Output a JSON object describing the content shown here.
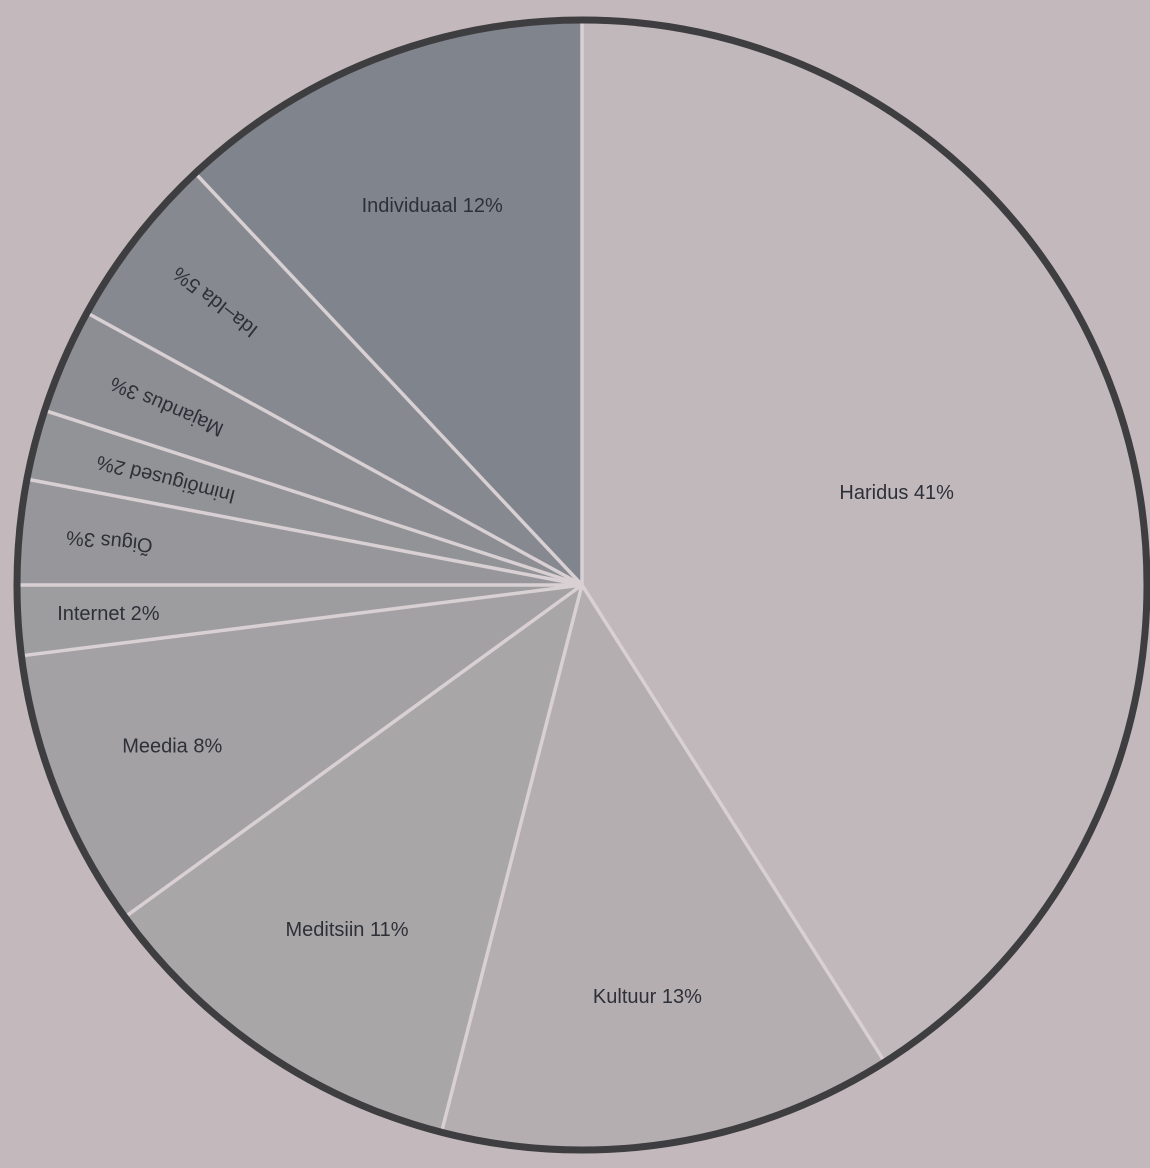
{
  "chart_data": {
    "type": "pie",
    "start_angle_deg": 0,
    "direction": "clockwise",
    "slices": [
      {
        "label": "Haridus 41%",
        "value": 41,
        "color": "#c0b8bb"
      },
      {
        "label": "Kultuur 13%",
        "value": 13,
        "color": "#b5aeb1"
      },
      {
        "label": "Meditsiin 11%",
        "value": 11,
        "color": "#a9a6a8"
      },
      {
        "label": "Meedia 8%",
        "value": 8,
        "color": "#a3a1a3"
      },
      {
        "label": "Internet 2%",
        "value": 2,
        "color": "#9d9c9f"
      },
      {
        "label": "Õigus 3%",
        "value": 3,
        "color": "#97979b"
      },
      {
        "label": "Inimõigused 2%",
        "value": 2,
        "color": "#929397"
      },
      {
        "label": "Majandus 3%",
        "value": 3,
        "color": "#8d8e94"
      },
      {
        "label": "Ida–Ida 5%",
        "value": 5,
        "color": "#868990"
      },
      {
        "label": "Individuaal 12%",
        "value": 12,
        "color": "#80848d"
      }
    ],
    "border_color": "#3e3d3f",
    "separator_color": "#d8d0d3"
  }
}
